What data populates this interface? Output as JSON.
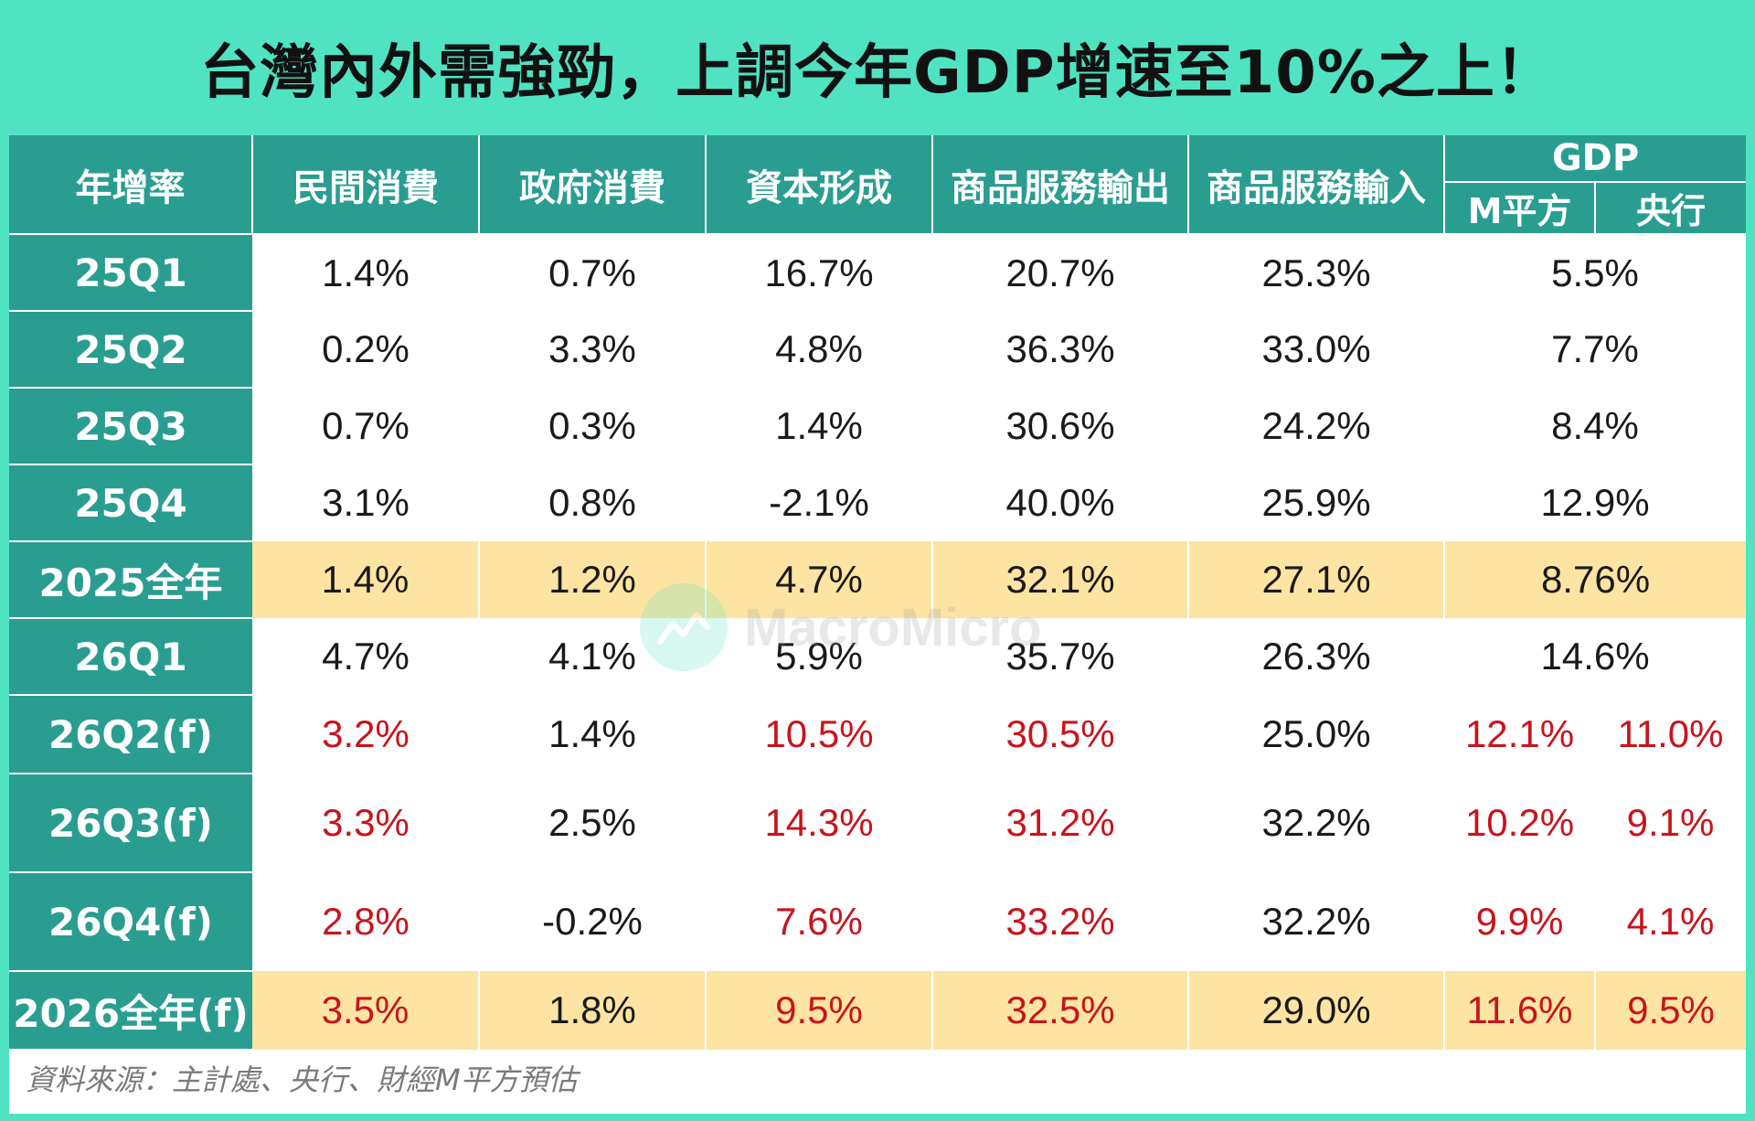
{
  "title": "台灣內外需強勁，上調今年GDP增速至10%之上！",
  "headers": {
    "rate": "年增率",
    "c1": "民間消費",
    "c2": "政府消費",
    "c3": "資本形成",
    "c4": "商品服務輸出",
    "c5": "商品服務輸入",
    "gdp": "GDP",
    "gdp_m": "M平方",
    "gdp_cb": "央行"
  },
  "rows": [
    {
      "label": "25Q1",
      "v": [
        "1.4%",
        "0.7%",
        "16.7%",
        "20.7%",
        "25.3%"
      ],
      "gdp": "5.5%"
    },
    {
      "label": "25Q2",
      "v": [
        "0.2%",
        "3.3%",
        "4.8%",
        "36.3%",
        "33.0%"
      ],
      "gdp": "7.7%"
    },
    {
      "label": "25Q3",
      "v": [
        "0.7%",
        "0.3%",
        "1.4%",
        "30.6%",
        "24.2%"
      ],
      "gdp": "8.4%"
    },
    {
      "label": "25Q4",
      "v": [
        "3.1%",
        "0.8%",
        "-2.1%",
        "40.0%",
        "25.9%"
      ],
      "gdp": "12.9%"
    },
    {
      "label": "2025全年",
      "v": [
        "1.4%",
        "1.2%",
        "4.7%",
        "32.1%",
        "27.1%"
      ],
      "gdp": "8.76%"
    },
    {
      "label": "26Q1",
      "v": [
        "4.7%",
        "4.1%",
        "5.9%",
        "35.7%",
        "26.3%"
      ],
      "gdp": "14.6%"
    },
    {
      "label": "26Q2(f)",
      "v": [
        "3.2%",
        "1.4%",
        "10.5%",
        "30.5%",
        "25.0%"
      ],
      "gdp_m": "12.1%",
      "gdp_cb": "11.0%"
    },
    {
      "label": "26Q3(f)",
      "v": [
        "3.3%",
        "2.5%",
        "14.3%",
        "31.2%",
        "32.2%"
      ],
      "gdp_m": "10.2%",
      "gdp_cb": "9.1%"
    },
    {
      "label": "26Q4(f)",
      "v": [
        "2.8%",
        "-0.2%",
        "7.6%",
        "33.2%",
        "32.2%"
      ],
      "gdp_m": "9.9%",
      "gdp_cb": "4.1%"
    },
    {
      "label": "2026全年(f)",
      "v": [
        "3.5%",
        "1.8%",
        "9.5%",
        "32.5%",
        "29.0%"
      ],
      "gdp_m": "11.6%",
      "gdp_cb": "9.5%"
    }
  ],
  "source": "資料來源：主計處、央行、財經M平方預估",
  "watermark": "MacroMicro",
  "colors": {
    "frame": "#4fe3c1",
    "header": "#2a9d91",
    "highlight": "#fde4a3",
    "forecast_red": "#c8141b"
  }
}
